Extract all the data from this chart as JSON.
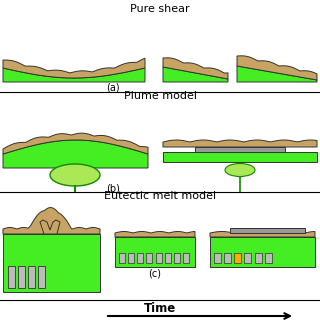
{
  "bg_color": "#ffffff",
  "brown": "#c8a464",
  "green": "#22cc00",
  "green2": "#44ee22",
  "dark_green": "#118800",
  "light_green": "#aae855",
  "gray": "#999999",
  "gray2": "#bbbbbb",
  "orange": "#ffaa00",
  "outline": "#333333",
  "title_a": "Pure shear",
  "title_b": "Plume model",
  "title_c": "Eutectic melt model",
  "label_a": "(a)",
  "label_b": "(b)",
  "label_c": "(c)",
  "time_label": "Time"
}
